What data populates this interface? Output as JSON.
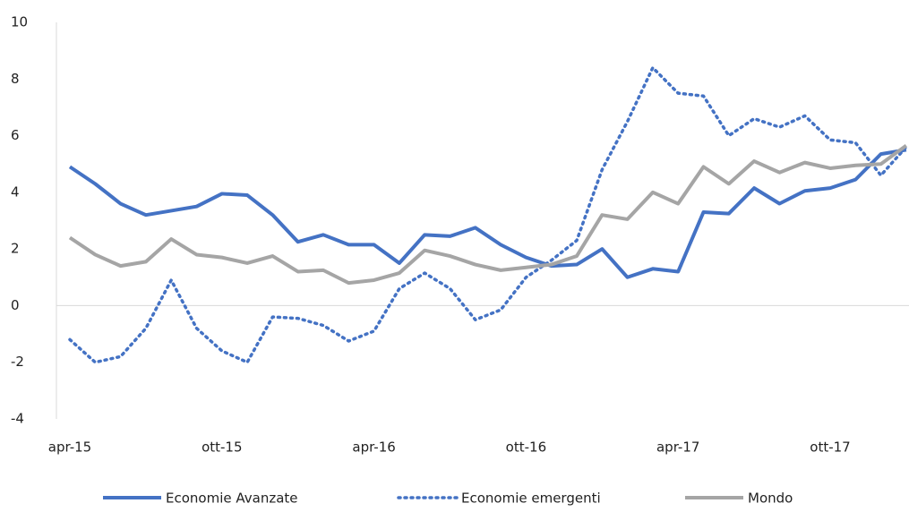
{
  "chart_data": {
    "type": "line",
    "categories": [
      "apr-15",
      null,
      null,
      null,
      null,
      null,
      "ott-15",
      null,
      null,
      null,
      null,
      null,
      "apr-16",
      null,
      null,
      null,
      null,
      null,
      "ott-16",
      null,
      null,
      null,
      null,
      null,
      "apr-17",
      null,
      null,
      null,
      null,
      null,
      "ott-17",
      null,
      null,
      null
    ],
    "series": [
      {
        "name": "Economie Avanzate",
        "color": "#4472c4",
        "dash": "solid",
        "values": [
          4.9,
          4.3,
          3.6,
          3.2,
          3.35,
          3.5,
          3.95,
          3.9,
          3.2,
          2.25,
          2.5,
          2.15,
          2.15,
          1.5,
          2.5,
          2.45,
          2.75,
          2.15,
          1.7,
          1.4,
          1.45,
          2.0,
          1.0,
          1.3,
          1.2,
          3.3,
          3.25,
          4.15,
          3.6,
          4.05,
          4.15,
          4.45,
          5.35,
          5.5
        ]
      },
      {
        "name": "Economie emergenti",
        "color": "#4472c4",
        "dash": "dotted",
        "values": [
          -1.2,
          -2.0,
          -1.8,
          -0.8,
          0.9,
          -0.8,
          -1.6,
          -2.0,
          -0.4,
          -0.45,
          -0.7,
          -1.25,
          -0.9,
          0.6,
          1.15,
          0.6,
          -0.5,
          -0.15,
          1.0,
          1.6,
          2.3,
          4.8,
          6.5,
          8.4,
          7.5,
          7.4,
          6.0,
          6.6,
          6.3,
          6.7,
          5.85,
          5.75,
          4.6,
          5.6
        ]
      },
      {
        "name": "Mondo",
        "color": "#a5a5a5",
        "dash": "solid",
        "values": [
          2.4,
          1.8,
          1.4,
          1.55,
          2.35,
          1.8,
          1.7,
          1.5,
          1.75,
          1.2,
          1.25,
          0.8,
          0.9,
          1.15,
          1.95,
          1.75,
          1.45,
          1.25,
          1.35,
          1.45,
          1.75,
          3.2,
          3.05,
          4.0,
          3.6,
          4.9,
          4.3,
          5.1,
          4.7,
          5.05,
          4.85,
          4.95,
          5.0,
          5.65
        ]
      }
    ],
    "ylim": [
      -4,
      10
    ],
    "yticks": [
      -4,
      -2,
      0,
      2,
      4,
      6,
      8,
      10
    ]
  }
}
